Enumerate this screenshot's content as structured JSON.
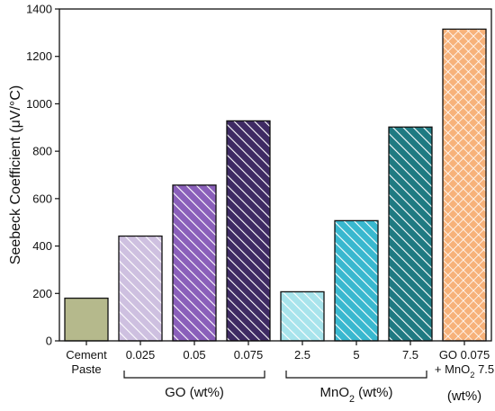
{
  "chart_data": {
    "type": "bar",
    "ylabel": "Seebeck Coefficient (μV/°C)",
    "xlabel": "",
    "ylim": [
      0,
      1400
    ],
    "yticks": [
      0,
      200,
      400,
      600,
      800,
      1000,
      1200,
      1400
    ],
    "grid": false,
    "categories": [
      {
        "lines": [
          "Cement",
          "Paste"
        ]
      },
      {
        "lines": [
          "0.025"
        ]
      },
      {
        "lines": [
          "0.05"
        ]
      },
      {
        "lines": [
          "0.075"
        ]
      },
      {
        "lines": [
          "2.5"
        ]
      },
      {
        "lines": [
          "5"
        ]
      },
      {
        "lines": [
          "7.5"
        ]
      },
      {
        "lines": [
          "GO 0.075",
          "+ MnO2 7.5"
        ]
      }
    ],
    "values": [
      180,
      442,
      657,
      928,
      207,
      507,
      902,
      1315
    ],
    "colors": [
      "#b5b98c",
      "#cec0e0",
      "#8a5fba",
      "#3e2a63",
      "#a8e4ec",
      "#39b8cf",
      "#1f7a82",
      "#f7b27a"
    ],
    "patterns": [
      "none",
      "diag",
      "diag",
      "diag",
      "diag",
      "diag",
      "diag",
      "cross"
    ],
    "groups": [
      {
        "label": "GO (wt%)",
        "from": 1,
        "to": 3
      },
      {
        "label": "MnO2 (wt%)",
        "from": 4,
        "to": 6
      }
    ],
    "unit_note": "(wt%)"
  }
}
